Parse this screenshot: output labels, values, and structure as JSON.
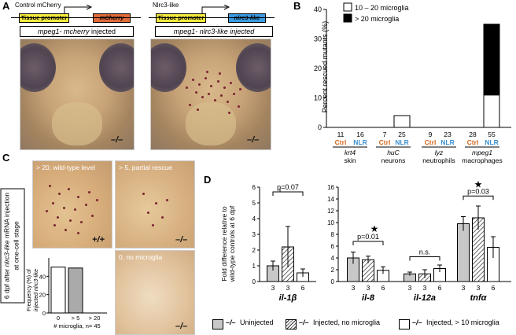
{
  "panelA": {
    "label": "A",
    "left": {
      "construct_title": "Control mCherry",
      "promoter": "Tissue promoter",
      "gene": "mCherry",
      "injected_prefix": "mpeg1- mcherry",
      "injected_suffix": " injected",
      "genotype": "–/–"
    },
    "right": {
      "construct_title": "Nlrc3-like",
      "promoter": "Tissue promoter",
      "gene": "nlrc3-like",
      "injected_prefix": "mpeg1- nlrc3-like",
      "injected_suffix": " injected",
      "genotype": "–/–"
    }
  },
  "panelB": {
    "label": "B",
    "ylabel": "Percent rescued mutants (%)",
    "legend": [
      "10 – 20 microglia",
      "> 20 microglia"
    ],
    "yticks": [
      "0",
      "10",
      "20",
      "30",
      "40"
    ],
    "groups": [
      {
        "name": "krt4",
        "tissue": "skin"
      },
      {
        "name": "huC",
        "tissue": "neurons"
      },
      {
        "name": "lyz",
        "tissue": "neutrophils"
      },
      {
        "name": "mpeg1",
        "tissue": "macrophages"
      }
    ],
    "bar_labels": [
      "Ctrl",
      "NLR",
      "Ctrl",
      "NLR",
      "Ctrl",
      "NLR",
      "Ctrl",
      "NLR"
    ],
    "ns": [
      "11",
      "16",
      "7",
      "25",
      "9",
      "23",
      "28",
      "55"
    ]
  },
  "panelC": {
    "label": "C",
    "side_label_a": "6 dpf after ",
    "side_label_b": "nlrc3-like",
    "side_label_c": " mRNA injection",
    "side_label_d": "at one-cell stage",
    "img1_caption": "> 20, wild-type level",
    "img1_genotype": "+/+",
    "img2_caption": "> 5, partial rescue",
    "img2_genotype": "–/–",
    "img3_caption": "0, no microglia",
    "img3_genotype": "–/–",
    "inset_ylabel1": "Frequency (%) of",
    "inset_ylabel2": "injected nlrc3-like",
    "inset_yticks": [
      "0",
      "20",
      "40"
    ],
    "inset_xticks": [
      "0",
      "> 5",
      "> 20"
    ],
    "inset_xlabel": "# microglia, n= 45"
  },
  "panelD": {
    "label": "D",
    "ylabel1": "Fold difference relative to",
    "ylabel2": "wild-type controls at 6 dpf",
    "left_yticks": [
      "0",
      "1",
      "2",
      "3",
      "4",
      "5",
      "6"
    ],
    "right_yticks": [
      "0",
      "2",
      "4",
      "6",
      "8",
      "10",
      "12",
      "14",
      "16"
    ],
    "genes": [
      "il-1β",
      "il-8",
      "il-12a",
      "tnfα"
    ],
    "ns": [
      "3",
      "3",
      "6",
      "3",
      "3",
      "6",
      "3",
      "3",
      "6",
      "3",
      "3",
      "6"
    ],
    "pvals": [
      "p=0.07",
      "p=0.01",
      "n.s.",
      "p=0.03"
    ],
    "star": "★",
    "legend": [
      {
        "geno": "–/–",
        "text": "Uninjected"
      },
      {
        "geno": "–/–",
        "text": "Injected, no microglia"
      },
      {
        "geno": "–/–",
        "text": "Injected, > 10 microglia"
      }
    ]
  },
  "chart_data": [
    {
      "type": "bar",
      "title": "",
      "ylabel": "Percent rescued mutants (%)",
      "ylim": [
        0,
        40
      ],
      "categories": [
        "krt4 Ctrl",
        "krt4 NLR",
        "huC Ctrl",
        "huC NLR",
        "lyz Ctrl",
        "lyz NLR",
        "mpeg1 Ctrl",
        "mpeg1 NLR"
      ],
      "series": [
        {
          "name": "10 – 20 microglia",
          "values": [
            0,
            0,
            0,
            4,
            0,
            0,
            0,
            11
          ]
        },
        {
          "name": "> 20 microglia",
          "values": [
            0,
            0,
            0,
            0,
            0,
            0,
            0,
            24
          ]
        }
      ]
    },
    {
      "type": "bar",
      "title": "",
      "ylabel": "",
      "ylim": [
        0,
        60
      ],
      "categories": [
        "0",
        "> 5",
        "> 20"
      ],
      "values": [
        50,
        49,
        0
      ]
    },
    {
      "type": "bar",
      "ylabel": "Fold difference relative to wild-type controls at 6 dpf",
      "ylim": [
        0,
        6
      ],
      "categories": [
        "il-1β"
      ],
      "series": [
        {
          "name": "Uninjected",
          "values": [
            1.0
          ]
        },
        {
          "name": "Injected, no microglia",
          "values": [
            2.2
          ]
        },
        {
          "name": "Injected, > 10 microglia",
          "values": [
            0.55
          ]
        }
      ],
      "errors": [
        [
          0.3
        ],
        [
          1.3
        ],
        [
          0.25
        ]
      ]
    },
    {
      "type": "bar",
      "ylim": [
        0,
        16
      ],
      "categories": [
        "il-8",
        "il-12a",
        "tnfα"
      ],
      "series": [
        {
          "name": "Uninjected",
          "values": [
            4.0,
            1.3,
            9.8
          ]
        },
        {
          "name": "Injected, no microglia",
          "values": [
            3.7,
            1.3,
            10.8
          ]
        },
        {
          "name": "Injected, > 10 microglia",
          "values": [
            1.9,
            2.2,
            5.8
          ]
        }
      ],
      "errors": [
        [
          1.0,
          0.3,
          1.2
        ],
        [
          0.6,
          0.7,
          2.0
        ],
        [
          0.6,
          0.6,
          1.8
        ]
      ]
    }
  ]
}
